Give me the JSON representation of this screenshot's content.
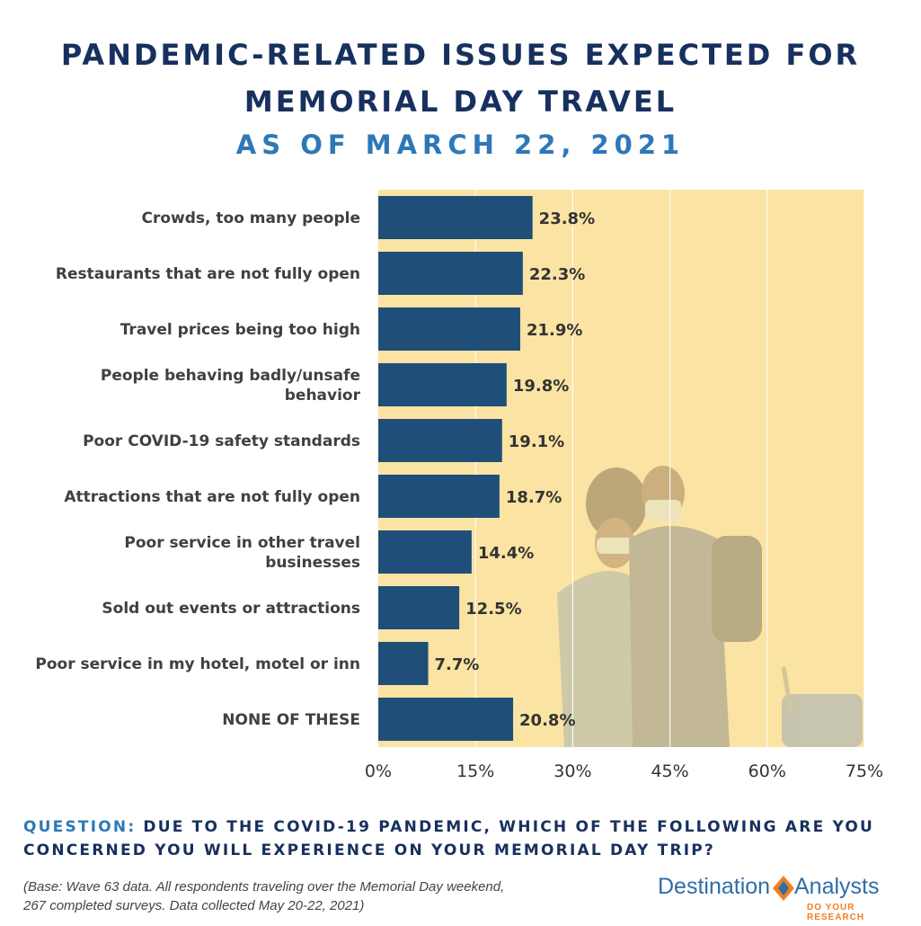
{
  "header": {
    "title_line1": "PANDEMIC-RELATED ISSUES EXPECTED FOR",
    "title_line2": "MEMORIAL DAY TRAVEL",
    "subtitle": "AS OF MARCH 22, 2021"
  },
  "chart_data": {
    "type": "bar",
    "orientation": "horizontal",
    "categories": [
      [
        "Crowds, too many people"
      ],
      [
        "Restaurants that are not fully open"
      ],
      [
        "Travel prices being too high"
      ],
      [
        "People behaving badly/unsafe",
        "behavior"
      ],
      [
        "Poor COVID-19 safety standards"
      ],
      [
        "Attractions that are  not fully open"
      ],
      [
        "Poor service in other travel",
        "businesses"
      ],
      [
        "Sold out events or attractions"
      ],
      [
        "Poor service in my hotel, motel or inn"
      ],
      [
        "NONE OF THESE"
      ]
    ],
    "values": [
      23.8,
      22.3,
      21.9,
      19.8,
      19.1,
      18.7,
      14.4,
      12.5,
      7.7,
      20.8
    ],
    "value_labels": [
      "23.8%",
      "22.3%",
      "21.9%",
      "19.8%",
      "19.1%",
      "18.7%",
      "14.4%",
      "12.5%",
      "7.7%",
      "20.8%"
    ],
    "xlim": [
      0,
      75
    ],
    "xticks": [
      0,
      15,
      30,
      45,
      60,
      75
    ],
    "xtick_labels": [
      "0%",
      "15%",
      "30%",
      "45%",
      "60%",
      "75%"
    ],
    "grid": true,
    "bar_color": "#1f4e79",
    "plot_background": "#fbe3a3",
    "background_image": "masked-travelers-couple-with-luggage"
  },
  "footer": {
    "question_prefix": "QUESTION:",
    "question_text": " DUE TO THE COVID-19 PANDEMIC, WHICH OF THE FOLLOWING ARE YOU CONCERNED YOU WILL EXPERIENCE ON YOUR MEMORIAL DAY TRIP?",
    "base_line1": "(Base: Wave 63 data. All respondents traveling over the Memorial Day weekend,",
    "base_line2": "267 completed surveys. Data collected May 20-22, 2021)"
  },
  "logo": {
    "word_left": "Destination",
    "word_right": "Analysts",
    "tagline": "DO YOUR RESEARCH",
    "color_blue": "#2e6da8",
    "color_orange": "#f07f23"
  }
}
